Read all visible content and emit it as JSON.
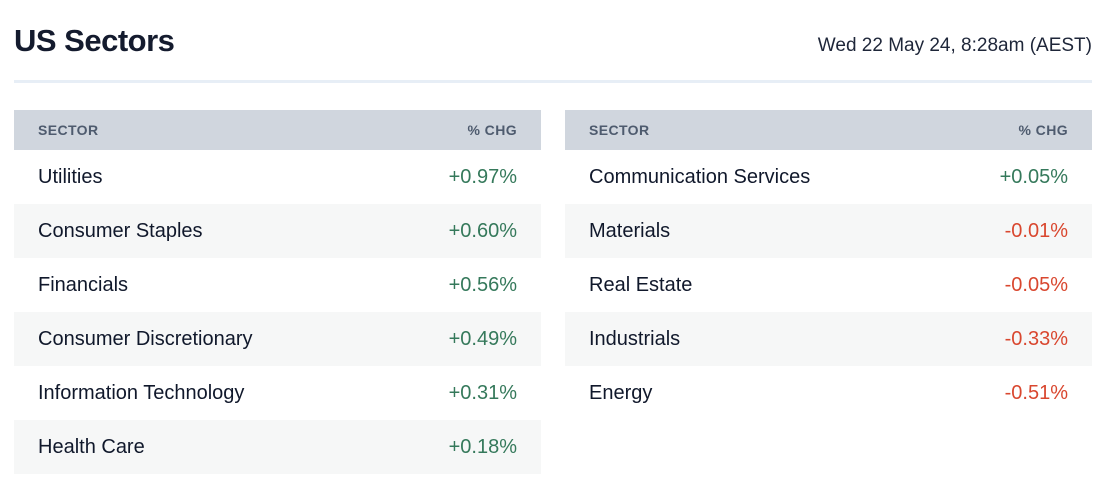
{
  "page": {
    "title": "US Sectors",
    "timestamp": "Wed 22 May 24, 8:28am (AEST)"
  },
  "colors": {
    "title_text": "#141B2E",
    "header_bg": "#D0D6DE",
    "header_text": "#4E5B6E",
    "row_text": "#10182B",
    "stripe_bg": "#F6F7F7",
    "divider": "#E7EEF6",
    "positive": "#35795B",
    "negative": "#D9472F"
  },
  "tables": {
    "left": {
      "headers": {
        "sector": "SECTOR",
        "chg": "% CHG"
      },
      "rows": [
        {
          "sector": "Utilities",
          "chg": "+0.97%",
          "direction": "positive"
        },
        {
          "sector": "Consumer Staples",
          "chg": "+0.60%",
          "direction": "positive"
        },
        {
          "sector": "Financials",
          "chg": "+0.56%",
          "direction": "positive"
        },
        {
          "sector": "Consumer Discretionary",
          "chg": "+0.49%",
          "direction": "positive"
        },
        {
          "sector": "Information Technology",
          "chg": "+0.31%",
          "direction": "positive"
        },
        {
          "sector": "Health Care",
          "chg": "+0.18%",
          "direction": "positive"
        }
      ]
    },
    "right": {
      "headers": {
        "sector": "SECTOR",
        "chg": "% CHG"
      },
      "rows": [
        {
          "sector": "Communication Services",
          "chg": "+0.05%",
          "direction": "positive"
        },
        {
          "sector": "Materials",
          "chg": "-0.01%",
          "direction": "negative"
        },
        {
          "sector": "Real Estate",
          "chg": "-0.05%",
          "direction": "negative"
        },
        {
          "sector": "Industrials",
          "chg": "-0.33%",
          "direction": "negative"
        },
        {
          "sector": "Energy",
          "chg": "-0.51%",
          "direction": "negative"
        }
      ]
    }
  },
  "chart_data": {
    "type": "table",
    "title": "US Sectors",
    "timestamp": "Wed 22 May 24, 8:28am (AEST)",
    "columns": [
      "SECTOR",
      "% CHG"
    ],
    "tables": [
      {
        "position": "left",
        "rows": [
          [
            "Utilities",
            "+0.97%"
          ],
          [
            "Consumer Staples",
            "+0.60%"
          ],
          [
            "Financials",
            "+0.56%"
          ],
          [
            "Consumer Discretionary",
            "+0.49%"
          ],
          [
            "Information Technology",
            "+0.31%"
          ],
          [
            "Health Care",
            "+0.18%"
          ]
        ]
      },
      {
        "position": "right",
        "rows": [
          [
            "Communication Services",
            "+0.05%"
          ],
          [
            "Materials",
            "-0.01%"
          ],
          [
            "Real Estate",
            "-0.05%"
          ],
          [
            "Industrials",
            "-0.33%"
          ],
          [
            "Energy",
            "-0.51%"
          ]
        ]
      }
    ],
    "values_numeric": {
      "Utilities": 0.97,
      "Consumer Staples": 0.6,
      "Financials": 0.56,
      "Consumer Discretionary": 0.49,
      "Information Technology": 0.31,
      "Health Care": 0.18,
      "Communication Services": 0.05,
      "Materials": -0.01,
      "Real Estate": -0.05,
      "Industrials": -0.33,
      "Energy": -0.51
    }
  }
}
